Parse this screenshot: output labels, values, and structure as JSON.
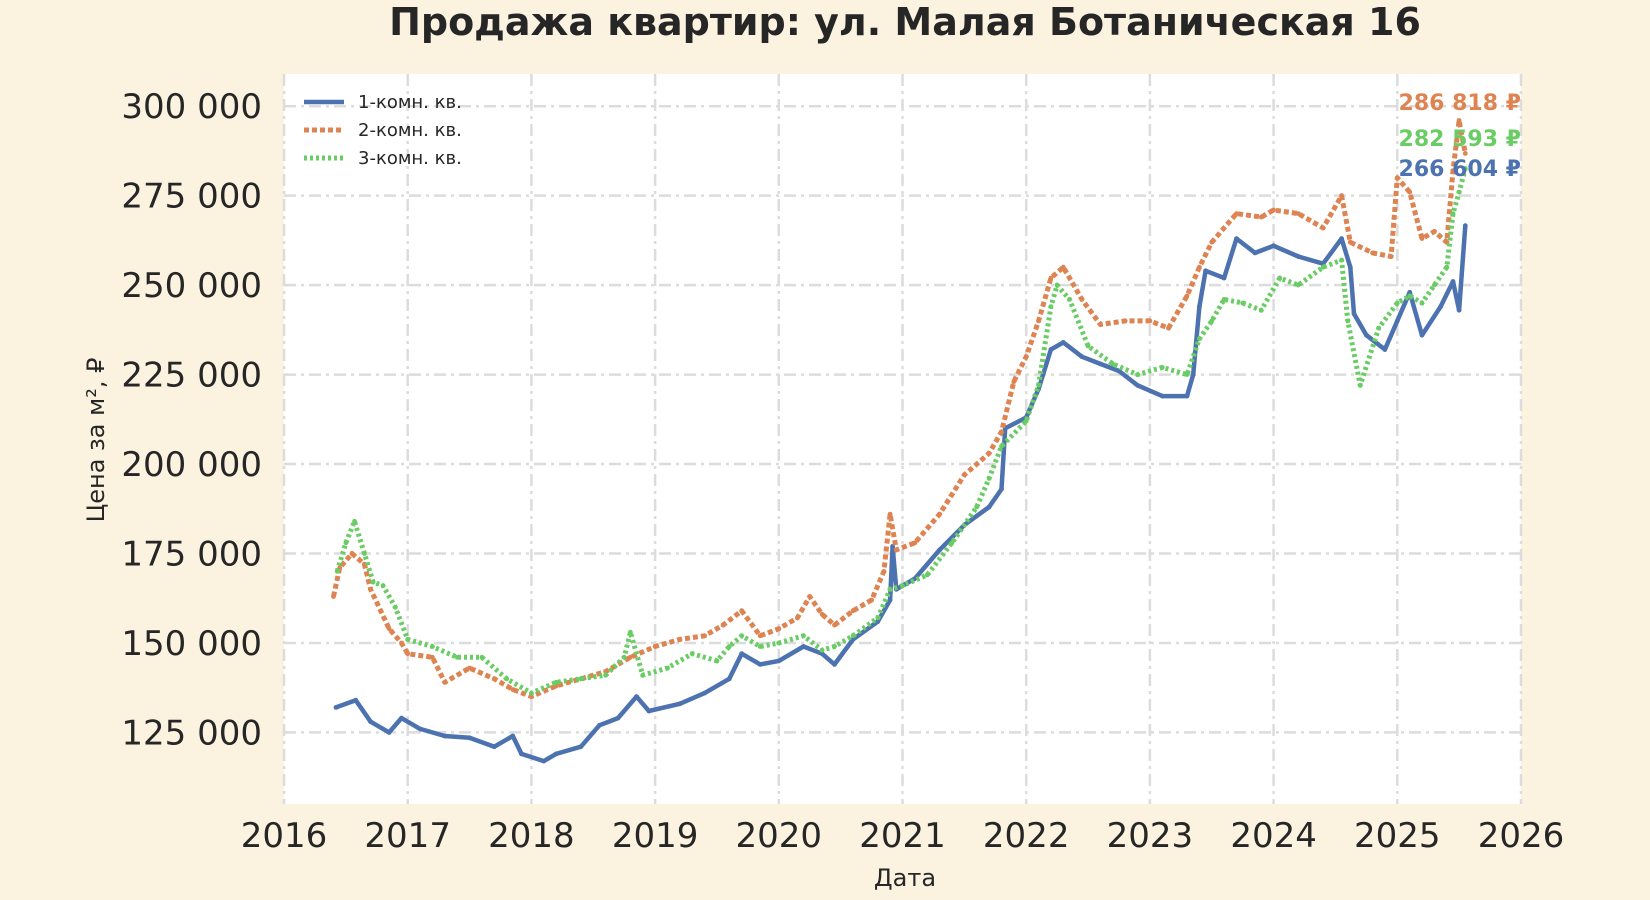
{
  "chart_data": {
    "type": "line",
    "title": "Продажа квартир: ул. Малая Ботаническая 16",
    "xlabel": "Дата",
    "ylabel": "Цена за м², ₽",
    "xlim": [
      2016,
      2026
    ],
    "ylim": [
      105000,
      309000
    ],
    "x_ticks": [
      "2016",
      "2017",
      "2018",
      "2019",
      "2020",
      "2021",
      "2022",
      "2023",
      "2024",
      "2025",
      "2026"
    ],
    "y_ticks": [
      "125 000",
      "150 000",
      "175 000",
      "200 000",
      "225 000",
      "250 000",
      "275 000",
      "300 000"
    ],
    "y_tick_values": [
      125000,
      150000,
      175000,
      200000,
      225000,
      250000,
      275000,
      300000
    ],
    "grid": true,
    "legend_position": "top-left",
    "series": [
      {
        "name": "1-комн. кв.",
        "color": "#4c72b0",
        "style": "solid",
        "end_label": "266 604 ₽",
        "points": [
          [
            2016.42,
            132000
          ],
          [
            2016.58,
            134000
          ],
          [
            2016.7,
            128000
          ],
          [
            2016.85,
            125000
          ],
          [
            2016.95,
            129000
          ],
          [
            2017.1,
            126000
          ],
          [
            2017.3,
            124000
          ],
          [
            2017.5,
            123500
          ],
          [
            2017.7,
            121000
          ],
          [
            2017.85,
            124000
          ],
          [
            2017.92,
            119000
          ],
          [
            2018.1,
            117000
          ],
          [
            2018.2,
            119000
          ],
          [
            2018.4,
            121000
          ],
          [
            2018.55,
            127000
          ],
          [
            2018.7,
            129000
          ],
          [
            2018.85,
            135000
          ],
          [
            2018.95,
            131000
          ],
          [
            2019.2,
            133000
          ],
          [
            2019.4,
            136000
          ],
          [
            2019.6,
            140000
          ],
          [
            2019.7,
            147000
          ],
          [
            2019.85,
            144000
          ],
          [
            2020.0,
            145000
          ],
          [
            2020.2,
            149000
          ],
          [
            2020.35,
            147000
          ],
          [
            2020.45,
            144000
          ],
          [
            2020.6,
            151000
          ],
          [
            2020.8,
            156000
          ],
          [
            2020.9,
            162000
          ],
          [
            2020.92,
            177000
          ],
          [
            2020.95,
            165000
          ],
          [
            2021.1,
            168000
          ],
          [
            2021.3,
            176000
          ],
          [
            2021.5,
            183000
          ],
          [
            2021.7,
            188000
          ],
          [
            2021.8,
            193000
          ],
          [
            2021.83,
            210000
          ],
          [
            2022.0,
            213000
          ],
          [
            2022.1,
            221000
          ],
          [
            2022.2,
            232000
          ],
          [
            2022.3,
            234000
          ],
          [
            2022.45,
            230000
          ],
          [
            2022.6,
            228000
          ],
          [
            2022.75,
            226000
          ],
          [
            2022.9,
            222000
          ],
          [
            2023.1,
            219000
          ],
          [
            2023.3,
            219000
          ],
          [
            2023.35,
            225000
          ],
          [
            2023.4,
            244000
          ],
          [
            2023.45,
            254000
          ],
          [
            2023.6,
            252000
          ],
          [
            2023.7,
            263000
          ],
          [
            2023.85,
            259000
          ],
          [
            2024.0,
            261000
          ],
          [
            2024.2,
            258000
          ],
          [
            2024.4,
            256000
          ],
          [
            2024.55,
            263000
          ],
          [
            2024.62,
            255000
          ],
          [
            2024.65,
            242000
          ],
          [
            2024.75,
            236000
          ],
          [
            2024.9,
            232000
          ],
          [
            2025.0,
            240000
          ],
          [
            2025.1,
            248000
          ],
          [
            2025.2,
            236000
          ],
          [
            2025.35,
            244000
          ],
          [
            2025.45,
            251000
          ],
          [
            2025.5,
            243000
          ],
          [
            2025.55,
            266604
          ]
        ]
      },
      {
        "name": "2-комн. кв.",
        "color": "#dd8452",
        "style": "dashed",
        "end_label": "286 818 ₽",
        "points": [
          [
            2016.4,
            163000
          ],
          [
            2016.45,
            171000
          ],
          [
            2016.55,
            175000
          ],
          [
            2016.65,
            172000
          ],
          [
            2016.7,
            165000
          ],
          [
            2016.85,
            154000
          ],
          [
            2016.95,
            150000
          ],
          [
            2017.0,
            147000
          ],
          [
            2017.2,
            146000
          ],
          [
            2017.3,
            139000
          ],
          [
            2017.5,
            143000
          ],
          [
            2017.7,
            140000
          ],
          [
            2017.85,
            137000
          ],
          [
            2018.0,
            135000
          ],
          [
            2018.2,
            138000
          ],
          [
            2018.4,
            140000
          ],
          [
            2018.6,
            142000
          ],
          [
            2018.8,
            146000
          ],
          [
            2019.0,
            149000
          ],
          [
            2019.2,
            151000
          ],
          [
            2019.4,
            152000
          ],
          [
            2019.55,
            155000
          ],
          [
            2019.7,
            159000
          ],
          [
            2019.85,
            152000
          ],
          [
            2020.0,
            154000
          ],
          [
            2020.15,
            157000
          ],
          [
            2020.25,
            163000
          ],
          [
            2020.35,
            158000
          ],
          [
            2020.45,
            155000
          ],
          [
            2020.6,
            159000
          ],
          [
            2020.75,
            162000
          ],
          [
            2020.85,
            170000
          ],
          [
            2020.9,
            186000
          ],
          [
            2020.95,
            176000
          ],
          [
            2021.1,
            178000
          ],
          [
            2021.3,
            186000
          ],
          [
            2021.5,
            197000
          ],
          [
            2021.7,
            203000
          ],
          [
            2021.8,
            209000
          ],
          [
            2021.9,
            223000
          ],
          [
            2022.0,
            230000
          ],
          [
            2022.1,
            240000
          ],
          [
            2022.2,
            252000
          ],
          [
            2022.3,
            255000
          ],
          [
            2022.45,
            246000
          ],
          [
            2022.6,
            239000
          ],
          [
            2022.8,
            240000
          ],
          [
            2023.0,
            240000
          ],
          [
            2023.15,
            238000
          ],
          [
            2023.3,
            247000
          ],
          [
            2023.4,
            255000
          ],
          [
            2023.5,
            262000
          ],
          [
            2023.7,
            270000
          ],
          [
            2023.9,
            269000
          ],
          [
            2024.0,
            271000
          ],
          [
            2024.2,
            270000
          ],
          [
            2024.4,
            266000
          ],
          [
            2024.55,
            275000
          ],
          [
            2024.62,
            262000
          ],
          [
            2024.8,
            259000
          ],
          [
            2024.95,
            258000
          ],
          [
            2025.0,
            280000
          ],
          [
            2025.1,
            276000
          ],
          [
            2025.2,
            263000
          ],
          [
            2025.3,
            265000
          ],
          [
            2025.4,
            262000
          ],
          [
            2025.45,
            282000
          ],
          [
            2025.5,
            296000
          ],
          [
            2025.55,
            286818
          ]
        ]
      },
      {
        "name": "3-комн. кв.",
        "color": "#6acc64",
        "style": "dotted",
        "end_label": "282 593 ₽",
        "points": [
          [
            2016.43,
            170000
          ],
          [
            2016.5,
            178000
          ],
          [
            2016.57,
            184000
          ],
          [
            2016.65,
            175000
          ],
          [
            2016.72,
            167000
          ],
          [
            2016.8,
            166000
          ],
          [
            2016.9,
            160000
          ],
          [
            2017.0,
            151000
          ],
          [
            2017.2,
            149000
          ],
          [
            2017.4,
            146000
          ],
          [
            2017.6,
            146000
          ],
          [
            2017.8,
            140000
          ],
          [
            2018.0,
            136000
          ],
          [
            2018.2,
            139000
          ],
          [
            2018.4,
            140000
          ],
          [
            2018.6,
            141000
          ],
          [
            2018.75,
            146000
          ],
          [
            2018.8,
            153000
          ],
          [
            2018.9,
            141000
          ],
          [
            2019.1,
            143000
          ],
          [
            2019.3,
            147000
          ],
          [
            2019.5,
            145000
          ],
          [
            2019.6,
            149000
          ],
          [
            2019.7,
            152000
          ],
          [
            2019.85,
            149000
          ],
          [
            2020.0,
            150000
          ],
          [
            2020.2,
            152000
          ],
          [
            2020.35,
            148000
          ],
          [
            2020.45,
            149000
          ],
          [
            2020.6,
            152000
          ],
          [
            2020.8,
            157000
          ],
          [
            2020.9,
            165000
          ],
          [
            2021.0,
            166000
          ],
          [
            2021.2,
            169000
          ],
          [
            2021.4,
            178000
          ],
          [
            2021.6,
            188000
          ],
          [
            2021.7,
            196000
          ],
          [
            2021.8,
            205000
          ],
          [
            2022.0,
            212000
          ],
          [
            2022.1,
            222000
          ],
          [
            2022.2,
            244000
          ],
          [
            2022.25,
            250000
          ],
          [
            2022.35,
            246000
          ],
          [
            2022.5,
            233000
          ],
          [
            2022.7,
            228000
          ],
          [
            2022.9,
            225000
          ],
          [
            2023.1,
            227000
          ],
          [
            2023.3,
            225000
          ],
          [
            2023.4,
            235000
          ],
          [
            2023.5,
            240000
          ],
          [
            2023.6,
            246000
          ],
          [
            2023.75,
            245000
          ],
          [
            2023.9,
            243000
          ],
          [
            2024.05,
            252000
          ],
          [
            2024.2,
            250000
          ],
          [
            2024.4,
            255000
          ],
          [
            2024.55,
            257000
          ],
          [
            2024.6,
            240000
          ],
          [
            2024.7,
            222000
          ],
          [
            2024.85,
            238000
          ],
          [
            2025.0,
            245000
          ],
          [
            2025.1,
            247000
          ],
          [
            2025.2,
            245000
          ],
          [
            2025.3,
            250000
          ],
          [
            2025.4,
            255000
          ],
          [
            2025.45,
            270000
          ],
          [
            2025.5,
            276000
          ],
          [
            2025.55,
            282593
          ]
        ]
      }
    ]
  }
}
